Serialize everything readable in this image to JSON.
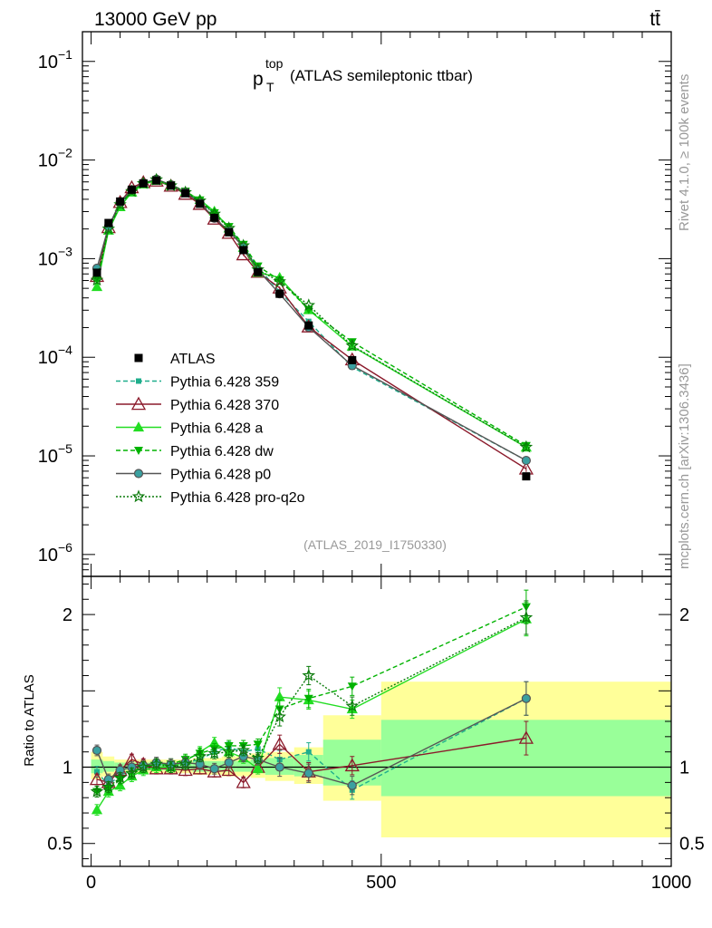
{
  "header": {
    "left": "13000 GeV pp",
    "right": "tt̄"
  },
  "side_texts": {
    "rivet": "Rivet 4.1.0, ≥ 100k events",
    "mcplots": "mcplots.cern.ch [arXiv:1306.3436]"
  },
  "chart_data": {
    "type": "line",
    "title": "p_T^top (ATLAS semileptonic ttbar)",
    "title_main": "p",
    "title_sub": "T",
    "title_sup": "top",
    "title_rest": "(ATLAS semileptonic ttbar)",
    "analysis_id": "(ATLAS_2019_I1750330)",
    "x_range": [
      -15,
      1000
    ],
    "x_ticks": [
      0,
      500,
      1000
    ],
    "x_tick_labels": [
      "0",
      "500",
      "1000"
    ],
    "main": {
      "yscale": "log",
      "ylim": [
        6e-07,
        0.2
      ],
      "y_tick_labels": [
        {
          "base": "10",
          "exp": "−1",
          "value": 0.1
        },
        {
          "base": "10",
          "exp": "−2",
          "value": 0.01
        },
        {
          "base": "10",
          "exp": "−3",
          "value": 0.001
        },
        {
          "base": "10",
          "exp": "−4",
          "value": 0.0001
        },
        {
          "base": "10",
          "exp": "−5",
          "value": 1e-05
        },
        {
          "base": "10",
          "exp": "−6",
          "value": 1e-06
        }
      ]
    },
    "ratio": {
      "ylabel": "Ratio to ATLAS",
      "ylim": [
        0.35,
        2.25
      ],
      "y_ticks": [
        0.5,
        1,
        2
      ],
      "y_tick_labels": [
        "0.5",
        "1",
        "2"
      ],
      "bands": [
        {
          "x0": 0,
          "x1": 20,
          "yel": [
            0.92,
            1.1
          ],
          "grn": [
            0.96,
            1.05
          ]
        },
        {
          "x0": 20,
          "x1": 40,
          "yel": [
            0.94,
            1.07
          ],
          "grn": [
            0.97,
            1.04
          ]
        },
        {
          "x0": 40,
          "x1": 60,
          "yel": [
            0.96,
            1.05
          ],
          "grn": [
            0.98,
            1.03
          ]
        },
        {
          "x0": 60,
          "x1": 80,
          "yel": [
            0.96,
            1.05
          ],
          "grn": [
            0.98,
            1.03
          ]
        },
        {
          "x0": 80,
          "x1": 100,
          "yel": [
            0.96,
            1.05
          ],
          "grn": [
            0.98,
            1.03
          ]
        },
        {
          "x0": 100,
          "x1": 125,
          "yel": [
            0.96,
            1.05
          ],
          "grn": [
            0.98,
            1.03
          ]
        },
        {
          "x0": 125,
          "x1": 150,
          "yel": [
            0.96,
            1.05
          ],
          "grn": [
            0.98,
            1.03
          ]
        },
        {
          "x0": 150,
          "x1": 175,
          "yel": [
            0.96,
            1.05
          ],
          "grn": [
            0.98,
            1.03
          ]
        },
        {
          "x0": 175,
          "x1": 200,
          "yel": [
            0.95,
            1.06
          ],
          "grn": [
            0.97,
            1.04
          ]
        },
        {
          "x0": 200,
          "x1": 225,
          "yel": [
            0.95,
            1.06
          ],
          "grn": [
            0.97,
            1.04
          ]
        },
        {
          "x0": 225,
          "x1": 250,
          "yel": [
            0.94,
            1.07
          ],
          "grn": [
            0.97,
            1.04
          ]
        },
        {
          "x0": 250,
          "x1": 275,
          "yel": [
            0.94,
            1.08
          ],
          "grn": [
            0.97,
            1.04
          ]
        },
        {
          "x0": 275,
          "x1": 300,
          "yel": [
            0.93,
            1.09
          ],
          "grn": [
            0.96,
            1.05
          ]
        },
        {
          "x0": 300,
          "x1": 350,
          "yel": [
            0.91,
            1.1
          ],
          "grn": [
            0.95,
            1.06
          ]
        },
        {
          "x0": 350,
          "x1": 400,
          "yel": [
            0.89,
            1.13
          ],
          "grn": [
            0.94,
            1.08
          ]
        },
        {
          "x0": 400,
          "x1": 500,
          "yel": [
            0.78,
            1.34
          ],
          "grn": [
            0.88,
            1.18
          ]
        },
        {
          "x0": 500,
          "x1": 1000,
          "yel": [
            0.54,
            1.56
          ],
          "grn": [
            0.81,
            1.31
          ]
        }
      ]
    },
    "atlas": {
      "x": [
        10,
        30,
        50,
        70,
        90,
        112.5,
        137.5,
        162.5,
        187.5,
        212.5,
        237.5,
        262.5,
        287.5,
        325,
        375,
        450,
        750
      ],
      "y": [
        0.00072,
        0.0023,
        0.0038,
        0.005,
        0.0058,
        0.0062,
        0.0055,
        0.0046,
        0.0036,
        0.0026,
        0.00185,
        0.00122,
        0.00073,
        0.00044,
        0.00021,
        9.35e-05,
        6.2e-06
      ]
    },
    "series": [
      {
        "name": "Pythia 6.428 359",
        "color": "#1fae8c",
        "dash": "5,3",
        "marker": "square",
        "ratio": [
          0.97,
          0.88,
          0.95,
          0.97,
          0.99,
          1.02,
          1.01,
          1.03,
          1.05,
          1.1,
          1.13,
          1.1,
          1.12,
          1.05,
          1.1,
          0.85,
          1.45
        ]
      },
      {
        "name": "Pythia 6.428 370",
        "color": "#8b1a2b",
        "dash": "",
        "marker": "triangle-open",
        "ratio": [
          0.92,
          0.9,
          0.98,
          1.05,
          1.02,
          0.99,
          0.99,
          0.98,
          0.99,
          0.97,
          0.98,
          0.9,
          1.0,
          1.15,
          0.97,
          1.01,
          1.19
        ]
      },
      {
        "name": "Pythia 6.428 a",
        "color": "#22dd22",
        "dash": "",
        "marker": "triangle",
        "ratio": [
          0.72,
          0.84,
          0.88,
          0.94,
          0.98,
          1.0,
          1.0,
          1.04,
          1.1,
          1.16,
          1.1,
          1.06,
          0.99,
          1.46,
          1.44,
          1.38,
          1.97
        ]
      },
      {
        "name": "Pythia 6.428 dw",
        "color": "#00b300",
        "dash": "5,3",
        "marker": "triangle-down",
        "ratio": [
          0.84,
          0.86,
          0.92,
          0.97,
          1.0,
          1.02,
          1.02,
          1.05,
          1.09,
          1.12,
          1.14,
          1.14,
          1.15,
          1.38,
          1.45,
          1.53,
          2.05
        ]
      },
      {
        "name": "Pythia 6.428 p0",
        "color": "#555555",
        "dash": "",
        "marker": "circle-open",
        "ratio": [
          1.11,
          0.92,
          0.98,
          1.0,
          1.01,
          1.03,
          1.02,
          1.03,
          1.02,
          0.99,
          1.03,
          1.07,
          1.05,
          1.0,
          0.96,
          0.88,
          1.45
        ]
      },
      {
        "name": "Pythia 6.428 pro-q2o",
        "color": "#0a7a0a",
        "dash": "2,2",
        "marker": "star-open",
        "ratio": [
          0.84,
          0.87,
          0.93,
          0.96,
          1.0,
          1.02,
          1.0,
          1.02,
          1.07,
          1.09,
          1.1,
          1.11,
          1.06,
          1.33,
          1.6,
          1.4,
          1.98
        ]
      }
    ]
  }
}
